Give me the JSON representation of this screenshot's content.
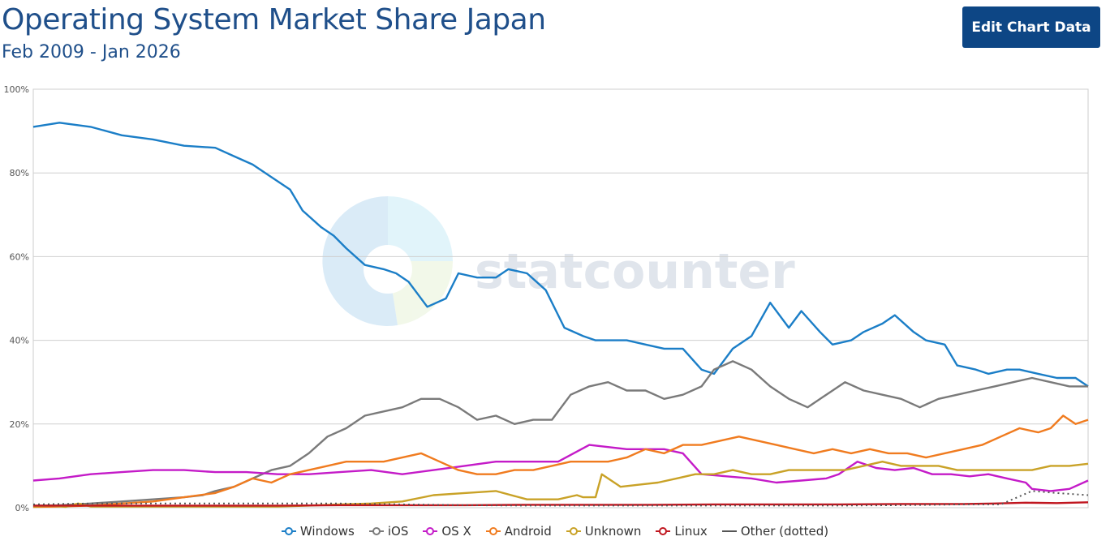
{
  "header": {
    "title": "Operating System Market Share Japan",
    "subtitle": "Feb 2009 - Jan 2026",
    "edit_button": "Edit Chart Data"
  },
  "watermark": "statcounter",
  "chart_data": {
    "type": "line",
    "title": "Operating System Market Share Japan",
    "subtitle": "Feb 2009 - Jan 2026",
    "xlabel": "",
    "ylabel": "",
    "ylim": [
      0,
      100
    ],
    "y_ticks": [
      "0%",
      "20%",
      "40%",
      "60%",
      "80%",
      "100%"
    ],
    "x_range": [
      "2009-02",
      "2026-01"
    ],
    "grid": true,
    "legend_position": "bottom",
    "series": [
      {
        "name": "Windows",
        "color": "#1b7ec7",
        "dotted": false,
        "x": [
          2009.08,
          2009.5,
          2010.0,
          2010.5,
          2011.0,
          2011.5,
          2012.0,
          2012.3,
          2012.6,
          2012.9,
          2013.2,
          2013.4,
          2013.7,
          2013.9,
          2014.1,
          2014.4,
          2014.7,
          2014.9,
          2015.1,
          2015.4,
          2015.7,
          2015.9,
          2016.2,
          2016.5,
          2016.7,
          2017.0,
          2017.3,
          2017.6,
          2017.9,
          2018.1,
          2018.3,
          2018.6,
          2018.9,
          2019.2,
          2019.5,
          2019.8,
          2020.0,
          2020.3,
          2020.6,
          2020.9,
          2021.2,
          2021.4,
          2021.7,
          2021.9,
          2022.2,
          2022.4,
          2022.7,
          2022.9,
          2023.2,
          2023.4,
          2023.7,
          2023.9,
          2024.2,
          2024.4,
          2024.7,
          2024.9,
          2025.2,
          2025.5,
          2025.8,
          2026.0
        ],
        "values": [
          91,
          92,
          91,
          89,
          88,
          86.5,
          86,
          84,
          82,
          79,
          76,
          71,
          67,
          65,
          62,
          58,
          57,
          56,
          54,
          48,
          50,
          56,
          55,
          55,
          57,
          56,
          52,
          43,
          41,
          40,
          40,
          40,
          39,
          38,
          38,
          33,
          32,
          38,
          41,
          49,
          43,
          47,
          42,
          39,
          40,
          42,
          44,
          46,
          42,
          40,
          39,
          34,
          33,
          32,
          33,
          33,
          32,
          31,
          31,
          29
        ]
      },
      {
        "name": "iOS",
        "color": "#7a7a7a",
        "dotted": false,
        "x": [
          2009.08,
          2009.5,
          2010.0,
          2010.5,
          2011.0,
          2011.5,
          2011.8,
          2012.0,
          2012.3,
          2012.6,
          2012.9,
          2013.2,
          2013.5,
          2013.8,
          2014.1,
          2014.4,
          2014.7,
          2015.0,
          2015.3,
          2015.6,
          2015.9,
          2016.2,
          2016.5,
          2016.8,
          2017.1,
          2017.4,
          2017.7,
          2018.0,
          2018.3,
          2018.6,
          2018.9,
          2019.2,
          2019.5,
          2019.8,
          2020.0,
          2020.3,
          2020.6,
          2020.9,
          2021.2,
          2021.5,
          2021.8,
          2022.1,
          2022.4,
          2022.7,
          2023.0,
          2023.3,
          2023.6,
          2023.9,
          2024.2,
          2024.5,
          2024.8,
          2025.1,
          2025.4,
          2025.7,
          2026.0
        ],
        "values": [
          0.5,
          0.6,
          1,
          1.5,
          2,
          2.5,
          3,
          4,
          5,
          7,
          9,
          10,
          13,
          17,
          19,
          22,
          23,
          24,
          26,
          26,
          24,
          21,
          22,
          20,
          21,
          21,
          27,
          29,
          30,
          28,
          28,
          26,
          27,
          29,
          33,
          35,
          33,
          29,
          26,
          24,
          27,
          30,
          28,
          27,
          26,
          24,
          26,
          27,
          28,
          29,
          30,
          31,
          30,
          29,
          29
        ]
      },
      {
        "name": "OS X",
        "color": "#c41bc8",
        "dotted": false,
        "x": [
          2009.08,
          2009.5,
          2010.0,
          2010.5,
          2011.0,
          2011.5,
          2012.0,
          2012.5,
          2013.0,
          2013.5,
          2014.0,
          2014.5,
          2015.0,
          2015.5,
          2016.0,
          2016.5,
          2017.0,
          2017.5,
          2018.0,
          2018.3,
          2018.6,
          2018.9,
          2019.2,
          2019.5,
          2019.8,
          2020.2,
          2020.6,
          2021.0,
          2021.4,
          2021.8,
          2022.0,
          2022.3,
          2022.6,
          2022.9,
          2023.2,
          2023.5,
          2023.8,
          2024.1,
          2024.4,
          2024.7,
          2025.0,
          2025.1,
          2025.4,
          2025.7,
          2026.0
        ],
        "values": [
          6.5,
          7,
          8,
          8.5,
          9,
          9,
          8.5,
          8.5,
          8,
          8,
          8.5,
          9,
          8,
          9,
          10,
          11,
          11,
          11,
          15,
          14.5,
          14,
          14,
          14,
          13,
          8,
          7.5,
          7,
          6,
          6.5,
          7,
          8,
          11,
          9.5,
          9,
          9.5,
          8,
          8,
          7.5,
          8,
          7,
          6,
          4.5,
          4,
          4.5,
          6.5
        ]
      },
      {
        "name": "Android",
        "color": "#f07b1f",
        "dotted": false,
        "x": [
          2009.08,
          2009.5,
          2010.0,
          2010.5,
          2011.0,
          2011.5,
          2012.0,
          2012.3,
          2012.6,
          2012.9,
          2013.2,
          2013.5,
          2013.8,
          2014.1,
          2014.4,
          2014.7,
          2015.0,
          2015.3,
          2015.6,
          2015.9,
          2016.2,
          2016.5,
          2016.8,
          2017.1,
          2017.4,
          2017.7,
          2018.0,
          2018.3,
          2018.6,
          2018.9,
          2019.2,
          2019.5,
          2019.8,
          2020.1,
          2020.4,
          2020.7,
          2021.0,
          2021.3,
          2021.6,
          2021.9,
          2022.2,
          2022.5,
          2022.8,
          2023.1,
          2023.4,
          2023.7,
          2024.0,
          2024.3,
          2024.6,
          2024.9,
          2025.2,
          2025.4,
          2025.6,
          2025.8,
          2026.0
        ],
        "values": [
          0.2,
          0.3,
          0.5,
          1,
          1.5,
          2.5,
          3.5,
          5,
          7,
          6,
          8,
          9,
          10,
          11,
          11,
          11,
          12,
          13,
          11,
          9,
          8,
          8,
          9,
          9,
          10,
          11,
          11,
          11,
          12,
          14,
          13,
          15,
          15,
          16,
          17,
          16,
          15,
          14,
          13,
          14,
          13,
          14,
          13,
          13,
          12,
          13,
          14,
          15,
          17,
          19,
          18,
          19,
          22,
          20,
          21
        ]
      },
      {
        "name": "Unknown",
        "color": "#c9a227",
        "dotted": false,
        "x": [
          2009.08,
          2009.4,
          2009.6,
          2009.8,
          2010.0,
          2010.5,
          2011.0,
          2011.5,
          2012.0,
          2012.5,
          2013.0,
          2013.5,
          2014.0,
          2014.5,
          2015.0,
          2015.5,
          2016.0,
          2016.5,
          2017.0,
          2017.5,
          2017.8,
          2017.9,
          2018.1,
          2018.2,
          2018.5,
          2018.8,
          2019.1,
          2019.4,
          2019.7,
          2020.0,
          2020.3,
          2020.6,
          2020.9,
          2021.2,
          2021.5,
          2021.8,
          2022.1,
          2022.4,
          2022.7,
          2023.0,
          2023.3,
          2023.6,
          2023.9,
          2024.2,
          2024.5,
          2024.8,
          2025.1,
          2025.4,
          2025.7,
          2026.0
        ],
        "values": [
          0.3,
          0.5,
          0.2,
          1,
          0.3,
          0.3,
          0.3,
          0.3,
          0.3,
          0.3,
          0.3,
          0.5,
          0.8,
          1,
          1.5,
          3,
          3.5,
          4,
          2,
          2,
          3,
          2.5,
          2.5,
          8,
          5,
          5.5,
          6,
          7,
          8,
          8,
          9,
          8,
          8,
          9,
          9,
          9,
          9,
          10,
          11,
          10,
          10,
          10,
          9,
          9,
          9,
          9,
          9,
          10,
          10,
          10.5
        ]
      },
      {
        "name": "Linux",
        "color": "#c0161f",
        "dotted": false,
        "x": [
          2009.08,
          2010.0,
          2011.0,
          2012.0,
          2013.0,
          2014.0,
          2015.0,
          2016.0,
          2017.0,
          2018.0,
          2019.0,
          2020.0,
          2021.0,
          2022.0,
          2023.0,
          2024.0,
          2024.5,
          2025.0,
          2025.5,
          2026.0
        ],
        "values": [
          0.5,
          0.5,
          0.5,
          0.5,
          0.5,
          0.6,
          0.6,
          0.6,
          0.7,
          0.7,
          0.7,
          0.8,
          0.8,
          0.8,
          0.9,
          0.9,
          1,
          1.2,
          1.1,
          1.3
        ]
      },
      {
        "name": "Other (dotted)",
        "color": "#555555",
        "dotted": true,
        "x": [
          2009.08,
          2010.0,
          2011.0,
          2012.0,
          2013.0,
          2014.0,
          2015.0,
          2016.0,
          2017.0,
          2018.0,
          2019.0,
          2020.0,
          2021.0,
          2022.0,
          2023.0,
          2024.0,
          2024.6,
          2025.1,
          2025.5,
          2026.0
        ],
        "values": [
          0.8,
          1,
          1,
          1,
          1,
          1,
          0.8,
          0.6,
          0.5,
          0.5,
          0.5,
          0.5,
          0.5,
          0.5,
          0.6,
          0.8,
          0.8,
          4,
          3.5,
          3
        ]
      }
    ]
  }
}
